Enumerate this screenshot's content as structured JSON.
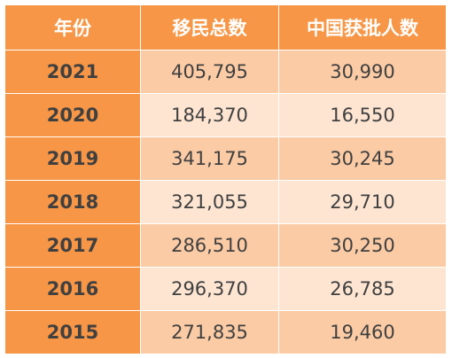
{
  "table": {
    "headers": [
      "年份",
      "移民总数",
      "中国获批人数"
    ],
    "rows": [
      {
        "year": "2021",
        "total": "405,795",
        "china": "30,990"
      },
      {
        "year": "2020",
        "total": "184,370",
        "china": "16,550"
      },
      {
        "year": "2019",
        "total": "341,175",
        "china": "30,245"
      },
      {
        "year": "2018",
        "total": "321,055",
        "china": "29,710"
      },
      {
        "year": "2017",
        "total": "286,510",
        "china": "30,250"
      },
      {
        "year": "2016",
        "total": "296,370",
        "china": "26,785"
      },
      {
        "year": "2015",
        "total": "271,835",
        "china": "19,460"
      }
    ]
  },
  "colors": {
    "header_bg": "#f79646",
    "year_col_bg": "#f79646",
    "row_dark_bg": "#fbcba5",
    "row_light_bg": "#fde5d2",
    "text": "#404040"
  }
}
